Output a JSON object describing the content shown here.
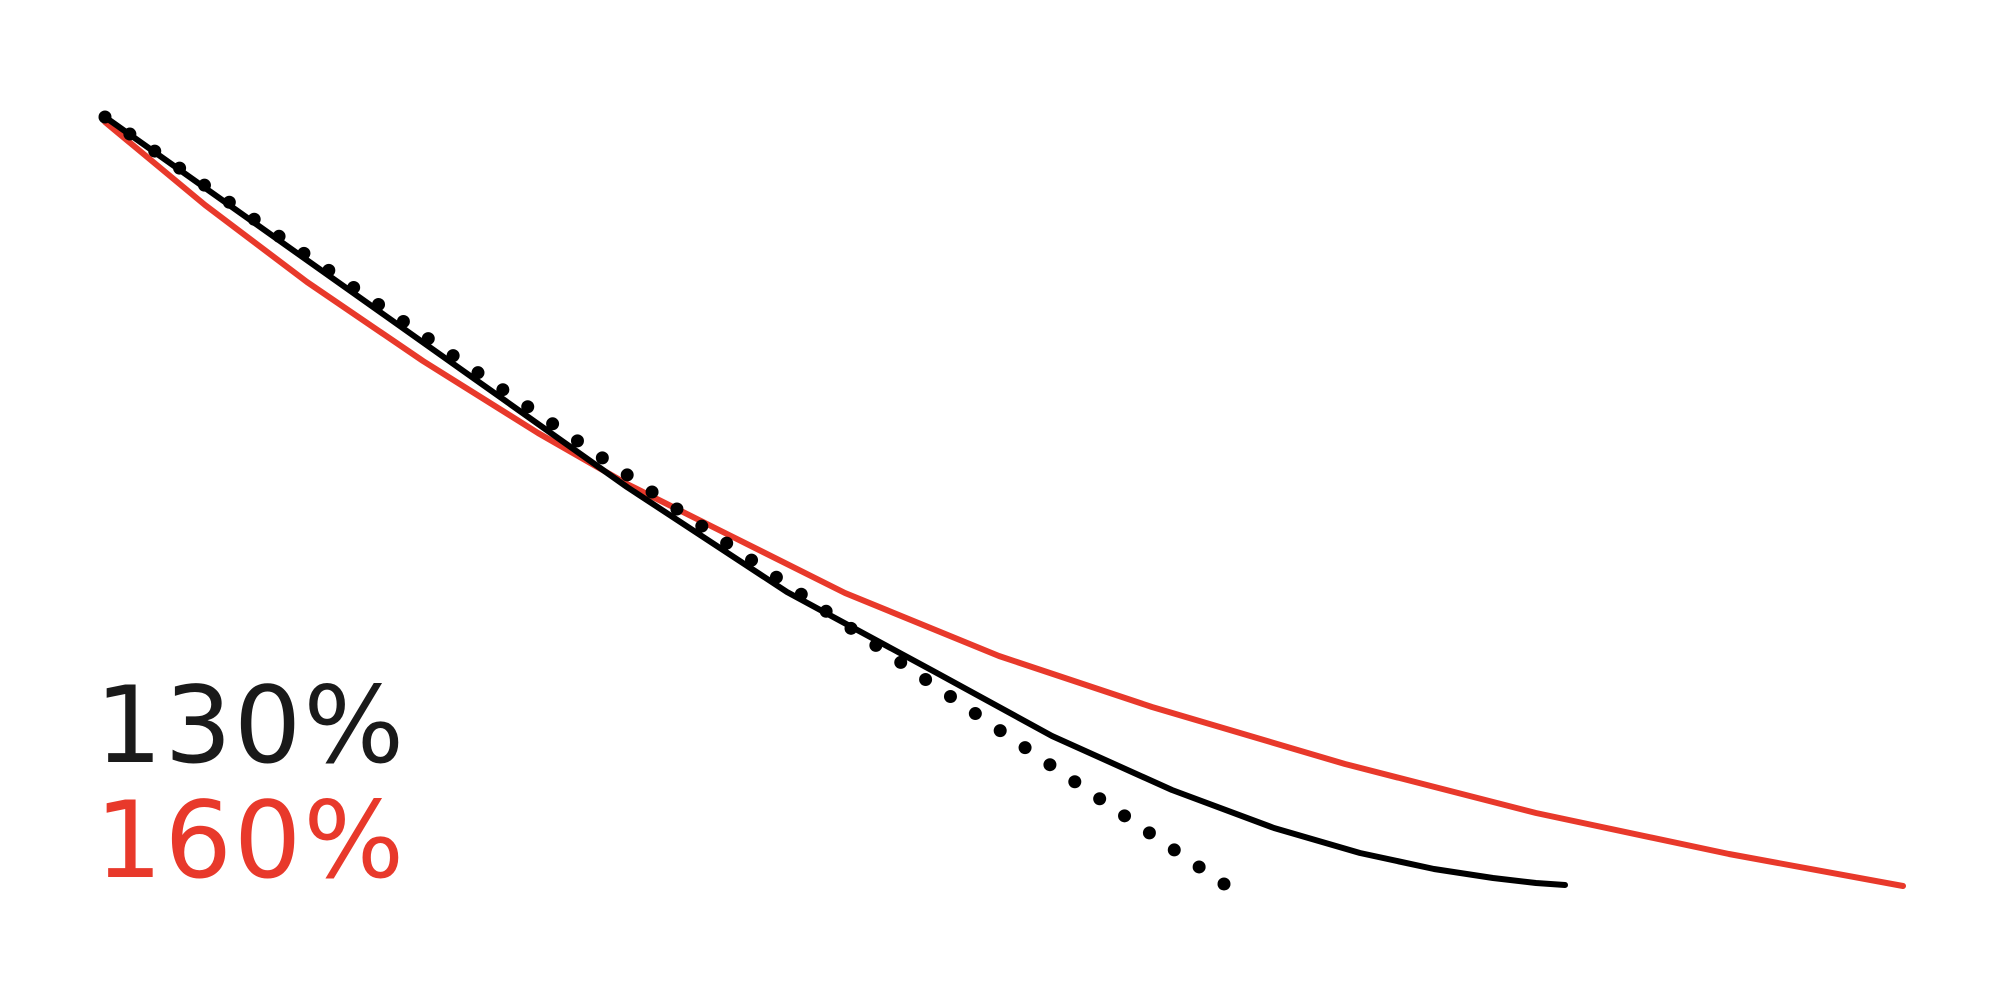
{
  "labels": [
    {
      "text": "130%",
      "color": "#1a1a1a"
    },
    {
      "text": "160%",
      "color": "#e8392b"
    }
  ]
}
